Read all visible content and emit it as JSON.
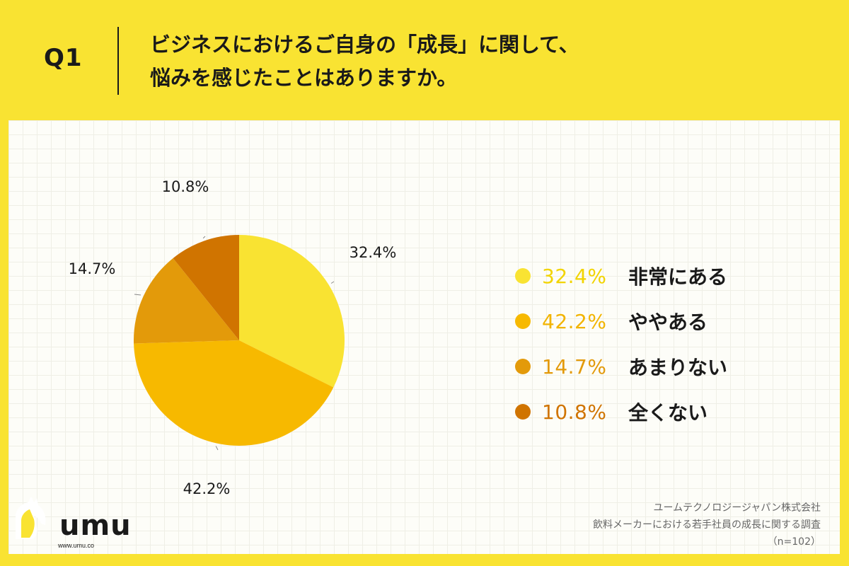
{
  "header": {
    "question_number": "Q1",
    "question_line1": "ビジネスにおけるご自身の「成長」に関して、",
    "question_line2": "悩みを感じたことはありますか。"
  },
  "chart_data": {
    "type": "pie",
    "categories": [
      "非常にある",
      "ややある",
      "あまりない",
      "全くない"
    ],
    "values": [
      32.4,
      42.2,
      14.7,
      10.8
    ],
    "labels": [
      "32.4%",
      "42.2%",
      "14.7%",
      "10.8%"
    ],
    "colors": [
      "#f9e332",
      "#f7b900",
      "#e39a0a",
      "#d07400"
    ],
    "legend_text_colors": [
      "#f2d400",
      "#f2b400",
      "#e39a0a",
      "#d07400"
    ],
    "start": "12 o'clock",
    "direction": "clockwise",
    "legend_position": "right",
    "grid": true
  },
  "legend": [
    {
      "pct": "32.4%",
      "label": "非常にある"
    },
    {
      "pct": "42.2%",
      "label": "ややある"
    },
    {
      "pct": "14.7%",
      "label": "あまりない"
    },
    {
      "pct": "10.8%",
      "label": "全くない"
    }
  ],
  "logo": {
    "name": "umu",
    "url": "www.umu.co"
  },
  "source": {
    "line1": "ユームテクノロジージャパン株式会社",
    "line2": "飲料メーカーにおける若手社員の成長に関する調査",
    "line3": "（n=102）"
  }
}
